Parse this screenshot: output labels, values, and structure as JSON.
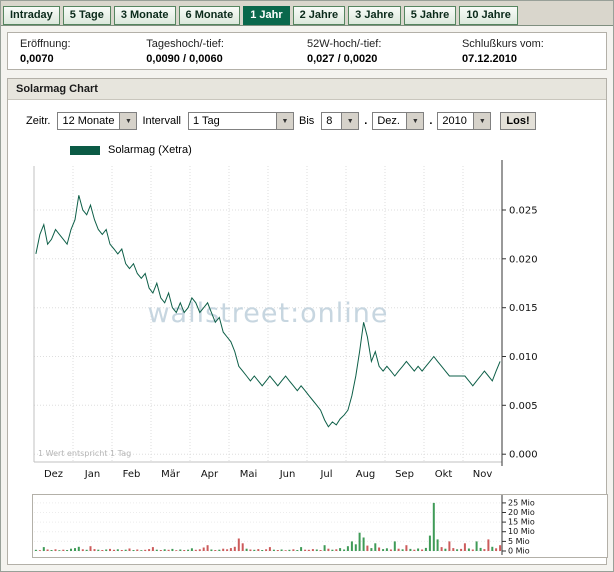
{
  "tabs": [
    {
      "label": "Intraday",
      "active": false
    },
    {
      "label": "5 Tage",
      "active": false
    },
    {
      "label": "3 Monate",
      "active": false
    },
    {
      "label": "6 Monate",
      "active": false
    },
    {
      "label": "1 Jahr",
      "active": true
    },
    {
      "label": "2 Jahre",
      "active": false
    },
    {
      "label": "3 Jahre",
      "active": false
    },
    {
      "label": "5 Jahre",
      "active": false
    },
    {
      "label": "10 Jahre",
      "active": false
    }
  ],
  "info": {
    "items": [
      {
        "label": "Eröffnung:",
        "value": "0,0070"
      },
      {
        "label": "Tageshoch/-tief:",
        "value": "0,0090 / 0,0060"
      },
      {
        "label": "52W-hoch/-tief:",
        "value": "0,027 / 0,0020"
      },
      {
        "label": "Schlußkurs vom:",
        "value": "07.12.2010"
      }
    ]
  },
  "section_title": "Solarmag Chart",
  "controls": {
    "zeitraum": {
      "label": "Zeitr.",
      "value": "12 Monate"
    },
    "intervall": {
      "label": "Intervall",
      "value": "1 Tag"
    },
    "bis": {
      "label": "Bis",
      "day": "8",
      "month": "Dez.",
      "year": "2010",
      "sep": "."
    },
    "go_label": "Los!"
  },
  "legend": {
    "label": "Solarmag (Xetra)",
    "color": "#0b5a45"
  },
  "chart_data": {
    "type": "line",
    "series_name": "Solarmag (Xetra)",
    "categories": [
      "Dez",
      "Jan",
      "Feb",
      "Mär",
      "Apr",
      "Mai",
      "Jun",
      "Jul",
      "Aug",
      "Sep",
      "Okt",
      "Nov"
    ],
    "values": [
      0.0205,
      0.0225,
      0.0235,
      0.0215,
      0.022,
      0.023,
      0.0225,
      0.022,
      0.0215,
      0.023,
      0.024,
      0.0265,
      0.025,
      0.0245,
      0.0255,
      0.024,
      0.023,
      0.0225,
      0.023,
      0.0215,
      0.021,
      0.0205,
      0.021,
      0.0195,
      0.019,
      0.0195,
      0.0185,
      0.018,
      0.0185,
      0.017,
      0.0165,
      0.0175,
      0.016,
      0.0155,
      0.0165,
      0.015,
      0.0145,
      0.0155,
      0.0145,
      0.015,
      0.016,
      0.0155,
      0.0145,
      0.015,
      0.0155,
      0.0145,
      0.0135,
      0.014,
      0.0125,
      0.012,
      0.0115,
      0.0105,
      0.009,
      0.0085,
      0.008,
      0.0075,
      0.008,
      0.0075,
      0.007,
      0.0075,
      0.008,
      0.0075,
      0.007,
      0.0075,
      0.008,
      0.0075,
      0.007,
      0.0065,
      0.007,
      0.0065,
      0.006,
      0.0055,
      0.005,
      0.0045,
      0.0035,
      0.0028,
      0.0033,
      0.003,
      0.0036,
      0.004,
      0.0045,
      0.006,
      0.008,
      0.0105,
      0.0135,
      0.012,
      0.0095,
      0.0105,
      0.009,
      0.0085,
      0.009,
      0.0085,
      0.008,
      0.0085,
      0.009,
      0.0095,
      0.009,
      0.0085,
      0.009,
      0.0085,
      0.009,
      0.0095,
      0.01,
      0.0095,
      0.009,
      0.0085,
      0.008,
      0.008,
      0.008,
      0.008,
      0.008,
      0.0075,
      0.007,
      0.0075,
      0.008,
      0.0085,
      0.008,
      0.0075,
      0.0085,
      0.0095
    ],
    "ylim": [
      0,
      0.0295
    ],
    "yticks": [
      {
        "v": 0.025,
        "label": "0.025"
      },
      {
        "v": 0.02,
        "label": "0.020"
      },
      {
        "v": 0.015,
        "label": "0.015"
      },
      {
        "v": 0.01,
        "label": "0.010"
      },
      {
        "v": 0.005,
        "label": "0.005"
      },
      {
        "v": 0.0,
        "label": "0.000"
      }
    ],
    "line_color": "#0e5f48",
    "watermark": "wallstreet:online",
    "watermark_color": "#c7d6e0",
    "note": "1 Wert entspricht 1 Tag",
    "volume": {
      "unit": "Mio",
      "ylim": [
        0,
        27
      ],
      "yticks": [
        {
          "v": 25,
          "label": "25 Mio"
        },
        {
          "v": 20,
          "label": "20 Mio"
        },
        {
          "v": 15,
          "label": "15 Mio"
        },
        {
          "v": 10,
          "label": "10 Mio"
        },
        {
          "v": 5,
          "label": "5 Mio"
        },
        {
          "v": 0,
          "label": "0 Mio"
        }
      ],
      "up_color": "#3f9b57",
      "down_color": "#cc5b5b",
      "bars": [
        [
          0.6,
          "g"
        ],
        [
          0.4,
          "r"
        ],
        [
          2.0,
          "g"
        ],
        [
          0.8,
          "r"
        ],
        [
          0.5,
          "g"
        ],
        [
          0.9,
          "r"
        ],
        [
          0.4,
          "g"
        ],
        [
          0.7,
          "r"
        ],
        [
          0.5,
          "g"
        ],
        [
          1.2,
          "g"
        ],
        [
          1.5,
          "g"
        ],
        [
          2.2,
          "g"
        ],
        [
          0.9,
          "r"
        ],
        [
          0.6,
          "g"
        ],
        [
          2.5,
          "r"
        ],
        [
          1.0,
          "r"
        ],
        [
          0.7,
          "g"
        ],
        [
          0.5,
          "r"
        ],
        [
          0.8,
          "g"
        ],
        [
          1.1,
          "r"
        ],
        [
          0.6,
          "r"
        ],
        [
          0.9,
          "g"
        ],
        [
          0.5,
          "r"
        ],
        [
          0.7,
          "g"
        ],
        [
          1.3,
          "r"
        ],
        [
          0.5,
          "g"
        ],
        [
          0.8,
          "r"
        ],
        [
          0.4,
          "g"
        ],
        [
          0.6,
          "r"
        ],
        [
          1.0,
          "r"
        ],
        [
          2.0,
          "r"
        ],
        [
          0.7,
          "g"
        ],
        [
          0.5,
          "r"
        ],
        [
          0.9,
          "g"
        ],
        [
          0.6,
          "r"
        ],
        [
          1.1,
          "g"
        ],
        [
          0.4,
          "r"
        ],
        [
          0.8,
          "g"
        ],
        [
          0.5,
          "r"
        ],
        [
          0.7,
          "g"
        ],
        [
          1.4,
          "g"
        ],
        [
          0.6,
          "r"
        ],
        [
          0.9,
          "r"
        ],
        [
          1.8,
          "r"
        ],
        [
          3.0,
          "r"
        ],
        [
          0.8,
          "g"
        ],
        [
          0.5,
          "r"
        ],
        [
          0.7,
          "g"
        ],
        [
          1.2,
          "r"
        ],
        [
          0.9,
          "r"
        ],
        [
          1.5,
          "r"
        ],
        [
          2.2,
          "r"
        ],
        [
          6.5,
          "r"
        ],
        [
          4.0,
          "r"
        ],
        [
          1.2,
          "g"
        ],
        [
          0.8,
          "r"
        ],
        [
          0.6,
          "g"
        ],
        [
          1.0,
          "r"
        ],
        [
          0.5,
          "g"
        ],
        [
          0.9,
          "r"
        ],
        [
          2.0,
          "r"
        ],
        [
          0.7,
          "g"
        ],
        [
          0.5,
          "r"
        ],
        [
          0.8,
          "g"
        ],
        [
          0.4,
          "r"
        ],
        [
          0.6,
          "g"
        ],
        [
          0.9,
          "r"
        ],
        [
          0.5,
          "g"
        ],
        [
          2.0,
          "g"
        ],
        [
          0.7,
          "r"
        ],
        [
          0.6,
          "r"
        ],
        [
          1.0,
          "r"
        ],
        [
          0.8,
          "g"
        ],
        [
          0.5,
          "r"
        ],
        [
          3.0,
          "g"
        ],
        [
          1.2,
          "r"
        ],
        [
          0.7,
          "g"
        ],
        [
          0.9,
          "r"
        ],
        [
          1.5,
          "g"
        ],
        [
          0.8,
          "g"
        ],
        [
          2.5,
          "g"
        ],
        [
          5.0,
          "g"
        ],
        [
          3.5,
          "g"
        ],
        [
          9.5,
          "g"
        ],
        [
          7.0,
          "g"
        ],
        [
          2.8,
          "r"
        ],
        [
          1.5,
          "g"
        ],
        [
          4.0,
          "g"
        ],
        [
          1.8,
          "r"
        ],
        [
          1.0,
          "g"
        ],
        [
          1.4,
          "g"
        ],
        [
          0.8,
          "r"
        ],
        [
          5.0,
          "g"
        ],
        [
          1.2,
          "r"
        ],
        [
          0.9,
          "g"
        ],
        [
          3.0,
          "r"
        ],
        [
          1.1,
          "g"
        ],
        [
          0.7,
          "r"
        ],
        [
          1.3,
          "g"
        ],
        [
          0.8,
          "r"
        ],
        [
          1.6,
          "g"
        ],
        [
          8.0,
          "g"
        ],
        [
          25.0,
          "g"
        ],
        [
          6.0,
          "g"
        ],
        [
          2.0,
          "r"
        ],
        [
          1.2,
          "g"
        ],
        [
          5.0,
          "r"
        ],
        [
          1.5,
          "r"
        ],
        [
          0.9,
          "g"
        ],
        [
          1.1,
          "r"
        ],
        [
          4.0,
          "r"
        ],
        [
          1.3,
          "g"
        ],
        [
          0.8,
          "r"
        ],
        [
          5.0,
          "g"
        ],
        [
          1.6,
          "g"
        ],
        [
          1.0,
          "r"
        ],
        [
          6.0,
          "r"
        ],
        [
          2.2,
          "g"
        ],
        [
          1.4,
          "r"
        ],
        [
          3.0,
          "r"
        ]
      ]
    }
  }
}
